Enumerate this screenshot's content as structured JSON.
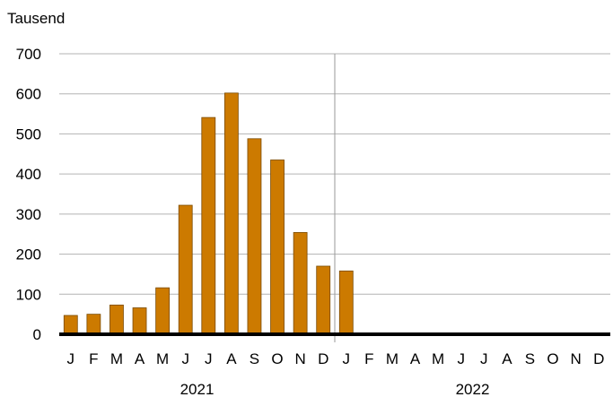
{
  "chart_data": {
    "type": "bar",
    "unit_label": "Tausend",
    "y_ticks": [
      "0",
      "100",
      "200",
      "300",
      "400",
      "500",
      "600",
      "700"
    ],
    "ylim": [
      0,
      700
    ],
    "grid": true,
    "categories": [
      "J",
      "F",
      "M",
      "A",
      "M",
      "J",
      "J",
      "A",
      "S",
      "O",
      "N",
      "D",
      "J",
      "F",
      "M",
      "A",
      "M",
      "J",
      "J",
      "A",
      "S",
      "O",
      "N",
      "D"
    ],
    "years": [
      "2021",
      "2022"
    ],
    "values": [
      47,
      50,
      73,
      66,
      116,
      322,
      541,
      602,
      488,
      435,
      254,
      170,
      158,
      null,
      null,
      null,
      null,
      null,
      null,
      null,
      null,
      null,
      null,
      null
    ],
    "bar_color": "#cc7a00",
    "bar_edge_color": "#7a4a00",
    "grid_color": "#b3b3b3",
    "axis_color": "#000000"
  }
}
